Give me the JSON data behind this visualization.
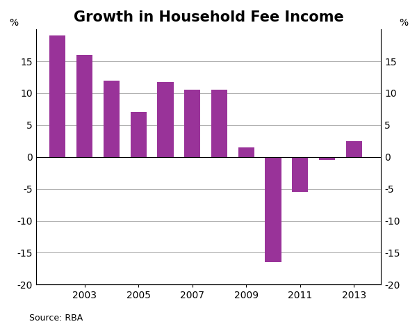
{
  "title": "Growth in Household Fee Income",
  "x_labels": [
    "2003",
    "2005",
    "2007",
    "2009",
    "2011",
    "2013"
  ],
  "values": [
    19.0,
    16.0,
    12.0,
    7.0,
    11.7,
    10.5,
    10.5,
    1.5,
    -16.5,
    -5.5,
    -0.5,
    2.5
  ],
  "bar_color": "#993399",
  "bar_width": 0.6,
  "ylim": [
    -20,
    20
  ],
  "yticks": [
    -20,
    -15,
    -10,
    -5,
    0,
    5,
    10,
    15
  ],
  "ylabel_left": "%",
  "ylabel_right": "%",
  "source": "Source: RBA",
  "background_color": "#ffffff",
  "grid_color": "#b0b0b0",
  "title_fontsize": 15,
  "tick_fontsize": 10
}
